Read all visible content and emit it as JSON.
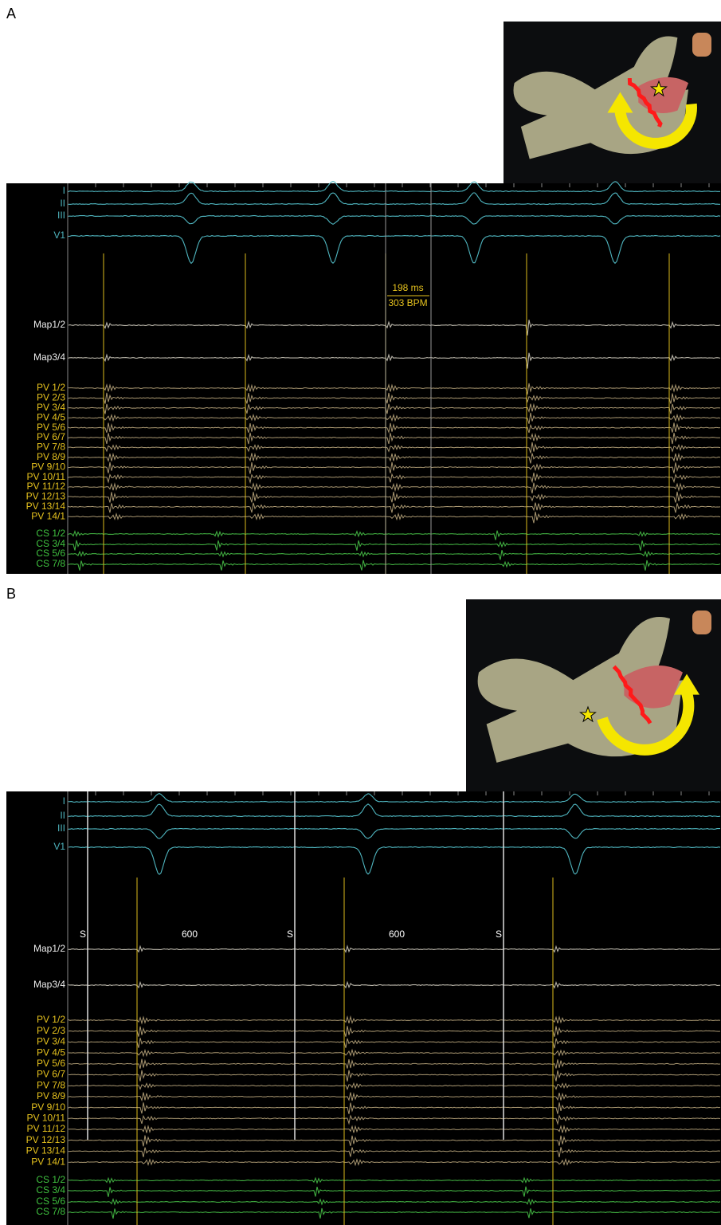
{
  "panels": [
    {
      "label": "A",
      "channels": [
        "I",
        "II",
        "III",
        "V1",
        "Map1/2",
        "Map3/4",
        "PV 1/2",
        "PV 2/3",
        "PV 3/4",
        "PV 4/5",
        "PV 5/6",
        "PV 6/7",
        "PV 7/8",
        "PV 8/9",
        "PV 9/10",
        "PV 10/11",
        "PV 11/12",
        "PV 12/13",
        "PV 13/14",
        "PV 14/1",
        "CS 1/2",
        "CS 3/4",
        "CS 5/6",
        "CS 7/8"
      ],
      "interval": "198 ms",
      "rate": "303 BPM"
    },
    {
      "label": "B",
      "channels": [
        "I",
        "II",
        "III",
        "V1",
        "Map1/2",
        "Map3/4",
        "PV 1/2",
        "PV 2/3",
        "PV 3/4",
        "PV 4/5",
        "PV 5/6",
        "PV 6/7",
        "PV 7/8",
        "PV 8/9",
        "PV 9/10",
        "PV 10/11",
        "PV 11/12",
        "PV 12/13",
        "PV 13/14",
        "PV 14/1",
        "CS 1/2",
        "CS 3/4",
        "CS 5/6",
        "CS 7/8"
      ],
      "stim_labels": [
        "S",
        "S",
        "S"
      ],
      "cycle_labels": [
        "600",
        "600"
      ]
    }
  ]
}
